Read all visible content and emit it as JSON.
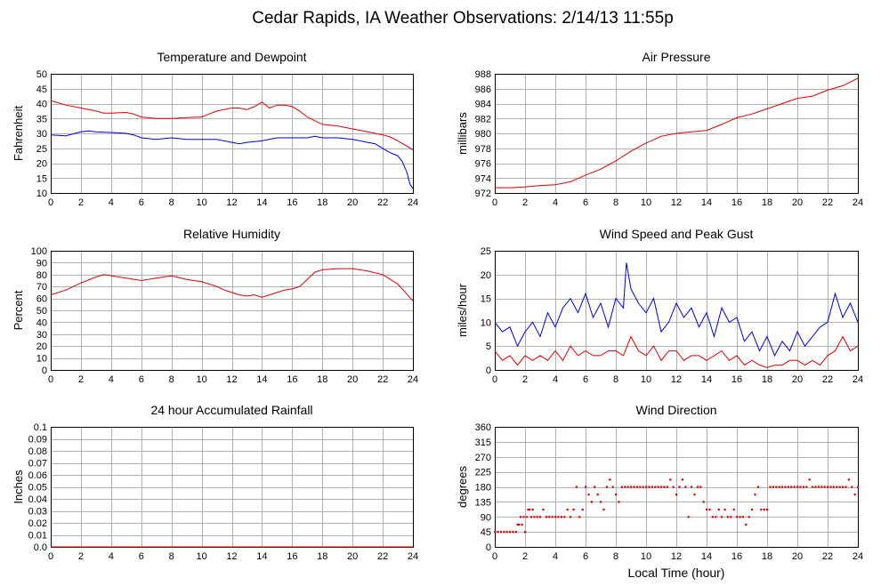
{
  "page_title": "Cedar Rapids, IA Weather Observations: 2/14/13 11:55p",
  "x_axis_label": "Local Time (hour)",
  "colors": {
    "primary": "#e00000",
    "secondary": "#0000e0",
    "grid": "#b0b0b0"
  },
  "chart_data": [
    {
      "id": "temp",
      "type": "line",
      "title": "Temperature and Dewpoint",
      "ylabel": "Fahrenheit",
      "xlim": [
        0,
        24
      ],
      "ylim": [
        10,
        50
      ],
      "xticks": [
        0,
        2,
        4,
        6,
        8,
        10,
        12,
        14,
        16,
        18,
        20,
        22,
        24
      ],
      "yticks": [
        10,
        15,
        20,
        25,
        30,
        35,
        40,
        45,
        50
      ],
      "grid": true,
      "series": [
        {
          "color": "#e00000",
          "x": [
            0,
            1,
            2,
            3,
            3.5,
            4,
            5,
            5.5,
            6,
            7,
            8,
            9,
            10,
            10.5,
            11,
            12,
            12.5,
            13,
            13.5,
            14,
            14.5,
            15,
            15.5,
            16,
            16.5,
            17,
            18,
            19,
            20,
            21,
            22,
            22.5,
            23,
            23.5,
            24
          ],
          "y": [
            41,
            39.5,
            38.5,
            37.5,
            36.8,
            36.8,
            37,
            36.5,
            35.5,
            35,
            35,
            35.3,
            35.5,
            36.5,
            37.5,
            38.5,
            38.5,
            38,
            39,
            40.5,
            38.5,
            39.5,
            39.5,
            39,
            37.5,
            35.5,
            33,
            32.5,
            31.5,
            30.5,
            29.5,
            28.8,
            27.5,
            26,
            24.5
          ]
        },
        {
          "color": "#0000e0",
          "x": [
            0,
            1,
            2,
            2.5,
            3,
            4,
            5,
            5.5,
            6,
            7,
            8,
            9,
            10,
            11,
            12,
            12.5,
            13,
            14,
            15,
            16,
            17,
            17.5,
            18,
            19,
            20,
            20.5,
            21,
            21.5,
            22,
            22.5,
            23,
            23.3,
            23.6,
            23.8,
            24
          ],
          "y": [
            29.5,
            29.2,
            30.5,
            30.8,
            30.5,
            30.3,
            30,
            29.5,
            28.5,
            28,
            28.5,
            28,
            28,
            28,
            27,
            26.5,
            27,
            27.5,
            28.5,
            28.5,
            28.5,
            29,
            28.5,
            28.5,
            28,
            27.5,
            27,
            26.5,
            25,
            23.5,
            22.5,
            20.5,
            17,
            13,
            11.5
          ]
        }
      ]
    },
    {
      "id": "pressure",
      "type": "line",
      "title": "Air Pressure",
      "ylabel": "millibars",
      "xlim": [
        0,
        24
      ],
      "ylim": [
        972,
        988
      ],
      "xticks": [
        0,
        2,
        4,
        6,
        8,
        10,
        12,
        14,
        16,
        18,
        20,
        22,
        24
      ],
      "yticks": [
        972,
        974,
        976,
        978,
        980,
        982,
        984,
        986,
        988
      ],
      "grid": true,
      "series": [
        {
          "color": "#e00000",
          "x": [
            0,
            1,
            2,
            3,
            4,
            5,
            6,
            7,
            8,
            9,
            10,
            11,
            12,
            13,
            14,
            15,
            16,
            17,
            18,
            19,
            20,
            21,
            22,
            23,
            24
          ],
          "y": [
            972.7,
            972.7,
            972.8,
            973,
            973.1,
            973.5,
            974.4,
            975.2,
            976.3,
            977.6,
            978.7,
            979.6,
            980,
            980.2,
            980.4,
            981.2,
            982.1,
            982.6,
            983.3,
            984,
            984.7,
            985,
            985.8,
            986.4,
            987.4
          ]
        }
      ]
    },
    {
      "id": "humidity",
      "type": "line",
      "title": "Relative Humidity",
      "ylabel": "Percent",
      "xlim": [
        0,
        24
      ],
      "ylim": [
        0,
        100
      ],
      "xticks": [
        0,
        2,
        4,
        6,
        8,
        10,
        12,
        14,
        16,
        18,
        20,
        22,
        24
      ],
      "yticks": [
        0,
        10,
        20,
        30,
        40,
        50,
        60,
        70,
        80,
        90,
        100
      ],
      "grid": true,
      "series": [
        {
          "color": "#e00000",
          "x": [
            0,
            1,
            2,
            3,
            3.5,
            4,
            5,
            6,
            7,
            8,
            9,
            10,
            11,
            11.5,
            12,
            12.5,
            13,
            13.5,
            14,
            14.5,
            15,
            15.5,
            16,
            16.5,
            17,
            17.5,
            18,
            19,
            20,
            21,
            22,
            22.5,
            23,
            23.5,
            24
          ],
          "y": [
            63,
            67,
            73,
            78,
            80,
            79,
            77,
            75,
            77,
            79,
            76,
            74,
            70,
            67,
            65,
            63,
            62,
            63,
            61,
            63,
            65,
            67,
            68,
            70,
            76,
            82,
            84,
            85,
            85,
            83,
            80,
            76,
            72,
            65,
            58
          ]
        }
      ]
    },
    {
      "id": "wind",
      "type": "line",
      "title": "Wind Speed and Peak Gust",
      "ylabel": "miles/hour",
      "xlim": [
        0,
        24
      ],
      "ylim": [
        0,
        25
      ],
      "xticks": [
        0,
        2,
        4,
        6,
        8,
        10,
        12,
        14,
        16,
        18,
        20,
        22,
        24
      ],
      "yticks": [
        0,
        5,
        10,
        15,
        20,
        25
      ],
      "grid": true,
      "series": [
        {
          "color": "#0000e0",
          "x": [
            0,
            0.5,
            1,
            1.5,
            2,
            2.5,
            3,
            3.5,
            4,
            4.5,
            5,
            5.5,
            6,
            6.5,
            7,
            7.5,
            8,
            8.5,
            8.7,
            9,
            9.5,
            10,
            10.5,
            11,
            11.5,
            12,
            12.5,
            13,
            13.5,
            14,
            14.5,
            15,
            15.5,
            16,
            16.5,
            17,
            17.5,
            18,
            18.5,
            19,
            19.5,
            20,
            20.5,
            21,
            21.5,
            22,
            22.5,
            23,
            23.5,
            24
          ],
          "y": [
            10,
            8,
            9,
            5,
            8,
            10,
            7,
            12,
            9,
            13,
            15,
            12,
            16,
            11,
            14,
            9,
            15,
            13,
            22.5,
            17,
            14,
            12,
            15,
            8,
            10,
            14,
            11,
            13,
            9,
            12,
            7,
            13,
            10,
            11,
            6,
            8,
            4,
            7,
            3,
            6,
            4,
            8,
            5,
            7,
            9,
            10,
            16,
            11,
            14,
            10
          ]
        },
        {
          "color": "#e00000",
          "x": [
            0,
            0.5,
            1,
            1.5,
            2,
            2.5,
            3,
            3.5,
            4,
            4.5,
            5,
            5.5,
            6,
            6.5,
            7,
            7.5,
            8,
            8.5,
            9,
            9.5,
            10,
            10.5,
            11,
            11.5,
            12,
            12.5,
            13,
            13.5,
            14,
            14.5,
            15,
            15.5,
            16,
            16.5,
            17,
            17.5,
            18,
            18.5,
            19,
            19.5,
            20,
            20.5,
            21,
            21.5,
            22,
            22.5,
            23,
            23.5,
            24
          ],
          "y": [
            4,
            2,
            3,
            1,
            3,
            2,
            3,
            2,
            4,
            2,
            5,
            3,
            4,
            3,
            3,
            4,
            4,
            3,
            7,
            4,
            3,
            5,
            2,
            4,
            4,
            2,
            3,
            3,
            2,
            3,
            4,
            2,
            3,
            1,
            2,
            1,
            0.5,
            1,
            1,
            2,
            2,
            1,
            2,
            1,
            3,
            4,
            7,
            4,
            5
          ]
        }
      ]
    },
    {
      "id": "rain",
      "type": "line",
      "title": "24 hour Accumulated Rainfall",
      "ylabel": "Inches",
      "xlim": [
        0,
        24
      ],
      "ylim": [
        0,
        0.1
      ],
      "xticks": [
        0,
        2,
        4,
        6,
        8,
        10,
        12,
        14,
        16,
        18,
        20,
        22,
        24
      ],
      "yticks": [
        "0.0",
        "0.01",
        "0.02",
        "0.03",
        "0.04",
        "0.05",
        "0.06",
        "0.07",
        "0.08",
        "0.09",
        "0.1"
      ],
      "grid": true,
      "series": [
        {
          "color": "#e00000",
          "x": [
            0,
            24
          ],
          "y": [
            0,
            0
          ]
        }
      ]
    },
    {
      "id": "direction",
      "type": "scatter",
      "title": "Wind Direction",
      "ylabel": "degrees",
      "xlim": [
        0,
        24
      ],
      "ylim": [
        0,
        360
      ],
      "xticks": [
        0,
        2,
        4,
        6,
        8,
        10,
        12,
        14,
        16,
        18,
        20,
        22,
        24
      ],
      "yticks": [
        0,
        45,
        90,
        135,
        180,
        225,
        270,
        315,
        360
      ],
      "grid": true,
      "series": [
        {
          "color": "#e00000",
          "x": [
            0,
            0.2,
            0.4,
            0.6,
            0.8,
            1,
            1.2,
            1.4,
            1.5,
            1.6,
            1.7,
            1.8,
            1.9,
            2,
            2.1,
            2.2,
            2.3,
            2.4,
            2.5,
            2.6,
            2.8,
            3,
            3.2,
            3.4,
            3.6,
            3.8,
            4,
            4.2,
            4.4,
            4.6,
            4.8,
            5,
            5.2,
            5.4,
            5.6,
            5.8,
            6,
            6.2,
            6.4,
            6.6,
            6.8,
            7,
            7.2,
            7.4,
            7.6,
            7.8,
            8,
            8.2,
            8.4,
            8.6,
            8.8,
            9,
            9.2,
            9.4,
            9.6,
            9.8,
            10,
            10.2,
            10.4,
            10.6,
            10.8,
            11,
            11.2,
            11.4,
            11.6,
            11.8,
            12,
            12.2,
            12.4,
            12.6,
            12.8,
            13,
            13.2,
            13.4,
            13.6,
            13.8,
            14,
            14.2,
            14.4,
            14.6,
            14.8,
            15,
            15.2,
            15.4,
            15.6,
            15.8,
            16,
            16.2,
            16.4,
            16.6,
            16.8,
            17,
            17.2,
            17.4,
            17.6,
            17.8,
            18,
            18.2,
            18.4,
            18.6,
            18.8,
            19,
            19.2,
            19.4,
            19.6,
            19.8,
            20,
            20.2,
            20.4,
            20.6,
            20.8,
            21,
            21.2,
            21.4,
            21.6,
            21.8,
            22,
            22.2,
            22.4,
            22.6,
            22.8,
            23,
            23.2,
            23.4,
            23.6,
            23.8,
            24
          ],
          "y": [
            45,
            45,
            45,
            45,
            45,
            45,
            45,
            45,
            67,
            67,
            90,
            67,
            90,
            45,
            90,
            112,
            112,
            90,
            112,
            90,
            90,
            90,
            112,
            90,
            90,
            90,
            90,
            90,
            90,
            90,
            112,
            90,
            112,
            180,
            90,
            112,
            180,
            157,
            135,
            180,
            157,
            135,
            112,
            180,
            202,
            180,
            157,
            135,
            180,
            180,
            180,
            180,
            180,
            180,
            180,
            180,
            180,
            180,
            180,
            180,
            180,
            180,
            180,
            180,
            202,
            180,
            157,
            180,
            202,
            180,
            90,
            180,
            157,
            180,
            180,
            135,
            112,
            112,
            90,
            90,
            112,
            90,
            112,
            90,
            90,
            112,
            90,
            90,
            90,
            67,
            90,
            112,
            157,
            180,
            112,
            112,
            112,
            180,
            180,
            180,
            180,
            180,
            180,
            180,
            180,
            180,
            180,
            180,
            180,
            180,
            202,
            180,
            180,
            180,
            180,
            180,
            180,
            180,
            180,
            180,
            180,
            180,
            180,
            202,
            180,
            157,
            180
          ]
        }
      ]
    }
  ]
}
